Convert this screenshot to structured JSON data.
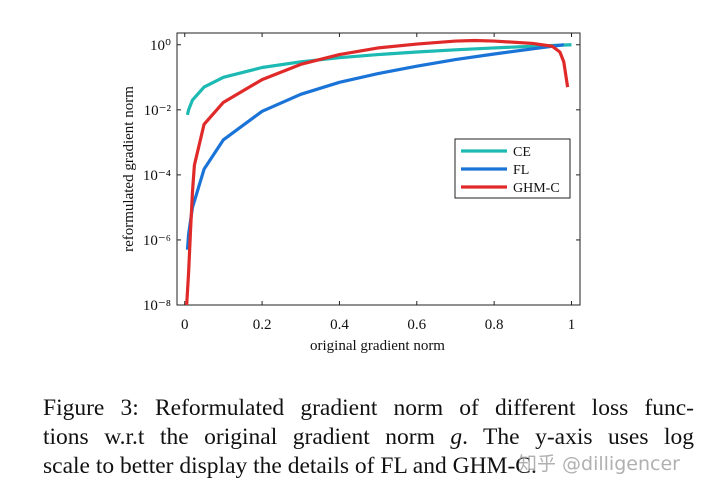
{
  "chart_data": {
    "type": "line",
    "xlabel": "original gradient norm",
    "ylabel": "reformulated gradient norm",
    "log_y": true,
    "xlim": [
      -0.02,
      1.022
    ],
    "ylim": [
      1e-08,
      2.3
    ],
    "xticks": [
      0,
      0.2,
      0.4,
      0.6,
      0.8,
      1
    ],
    "yticks": [
      {
        "value": 1e-08,
        "label": "10⁻⁸"
      },
      {
        "value": 1e-06,
        "label": "10⁻⁶"
      },
      {
        "value": 0.0001,
        "label": "10⁻⁴"
      },
      {
        "value": 0.01,
        "label": "10⁻²"
      },
      {
        "value": 1,
        "label": "10⁰"
      }
    ],
    "legend": "center right",
    "series": [
      {
        "name": "CE",
        "color": "#1db9b3",
        "x": [
          0.007,
          0.01,
          0.02,
          0.05,
          0.1,
          0.2,
          0.3,
          0.4,
          0.5,
          0.6,
          0.7,
          0.8,
          0.9,
          0.95,
          1.0
        ],
        "values": [
          0.007,
          0.01,
          0.02,
          0.05,
          0.1,
          0.2,
          0.3,
          0.4,
          0.5,
          0.6,
          0.7,
          0.8,
          0.9,
          0.95,
          1.0
        ]
      },
      {
        "name": "FL",
        "color": "#1a74d8",
        "x": [
          0.007,
          0.01,
          0.02,
          0.05,
          0.1,
          0.2,
          0.3,
          0.4,
          0.5,
          0.6,
          0.7,
          0.8,
          0.9,
          0.95,
          0.98
        ],
        "values": [
          5e-07,
          1.5e-06,
          1e-05,
          0.00015,
          0.0012,
          0.009,
          0.03,
          0.07,
          0.13,
          0.22,
          0.35,
          0.52,
          0.75,
          0.9,
          1.0
        ]
      },
      {
        "name": "GHM-C",
        "color": "#e02a2a",
        "x": [
          0.005,
          0.01,
          0.015,
          0.02,
          0.025,
          0.05,
          0.1,
          0.2,
          0.3,
          0.4,
          0.5,
          0.6,
          0.7,
          0.75,
          0.8,
          0.9,
          0.95,
          0.97,
          0.98,
          0.99
        ],
        "values": [
          1e-08,
          1e-07,
          2e-06,
          3e-05,
          0.0002,
          0.0036,
          0.017,
          0.085,
          0.25,
          0.5,
          0.8,
          1.05,
          1.3,
          1.35,
          1.3,
          1.1,
          0.9,
          0.6,
          0.3,
          0.05
        ]
      }
    ]
  },
  "caption": {
    "lines": [
      [
        "Figure 3: Reformulated gradient norm of different loss func-"
      ],
      [
        "tions w.r.t the original gradient norm ",
        "g",
        ". The y-axis uses log"
      ],
      [
        "scale to better display the details of FL and GHM-C."
      ]
    ]
  },
  "watermark": "知乎 @dilligencer"
}
